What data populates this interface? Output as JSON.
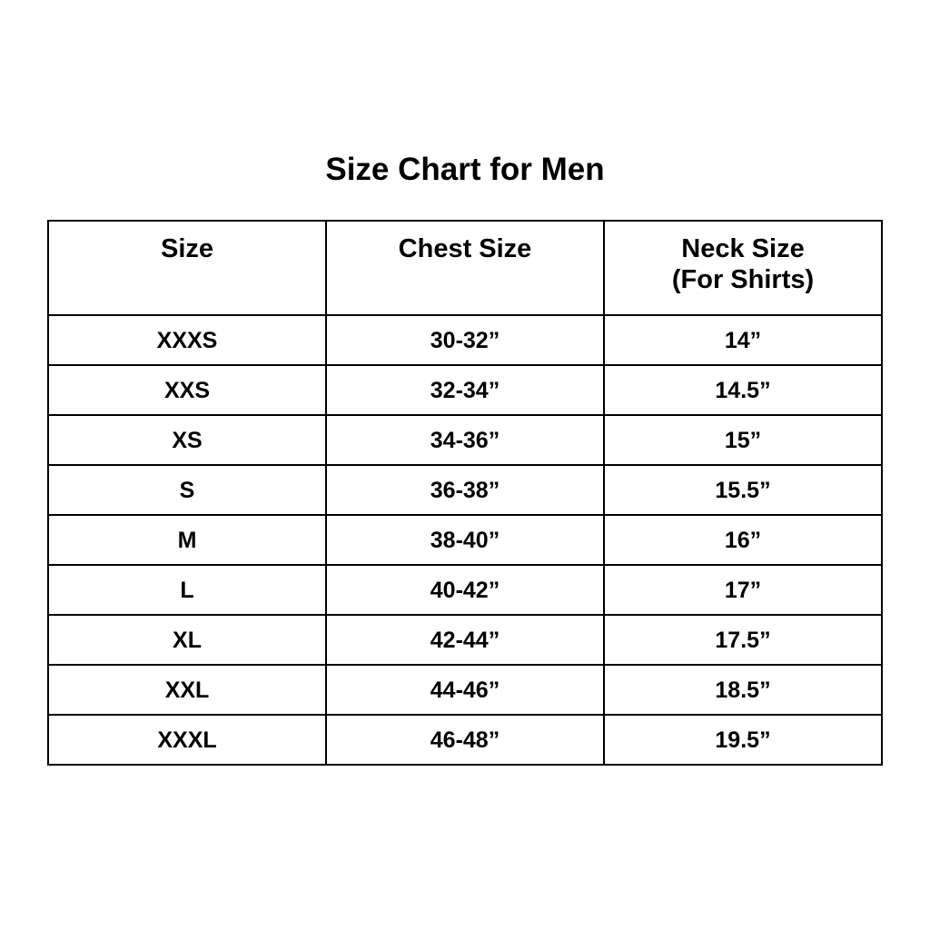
{
  "page": {
    "title": "Size Chart for Men"
  },
  "header": {
    "size": "Size",
    "chest": "Chest Size",
    "neck_line1": "Neck Size",
    "neck_line2": "(For Shirts)"
  },
  "colors": {
    "background": "#ffffff",
    "text": "#000000",
    "border": "#000000"
  },
  "chart_data": {
    "type": "table",
    "title": "Size Chart for Men",
    "columns": [
      "Size",
      "Chest Size",
      "Neck Size (For Shirts)"
    ],
    "rows": [
      [
        "XXXS",
        "30-32”",
        "14”"
      ],
      [
        "XXS",
        "32-34”",
        "14.5”"
      ],
      [
        "XS",
        "34-36”",
        "15”"
      ],
      [
        "S",
        "36-38”",
        "15.5”"
      ],
      [
        "M",
        "38-40”",
        "16”"
      ],
      [
        "L",
        "40-42”",
        "17”"
      ],
      [
        "XL",
        "42-44”",
        "17.5”"
      ],
      [
        "XXL",
        "44-46”",
        "18.5”"
      ],
      [
        "XXXL",
        "46-48”",
        "19.5”"
      ]
    ]
  }
}
